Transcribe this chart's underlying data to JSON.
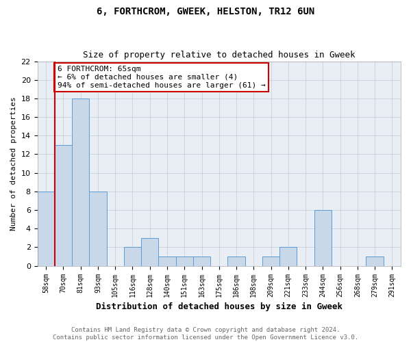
{
  "title": "6, FORTHCROM, GWEEK, HELSTON, TR12 6UN",
  "subtitle": "Size of property relative to detached houses in Gweek",
  "xlabel": "Distribution of detached houses by size in Gweek",
  "ylabel": "Number of detached properties",
  "categories": [
    "58sqm",
    "70sqm",
    "81sqm",
    "93sqm",
    "105sqm",
    "116sqm",
    "128sqm",
    "140sqm",
    "151sqm",
    "163sqm",
    "175sqm",
    "186sqm",
    "198sqm",
    "209sqm",
    "221sqm",
    "233sqm",
    "244sqm",
    "256sqm",
    "268sqm",
    "279sqm",
    "291sqm"
  ],
  "values": [
    8,
    13,
    18,
    8,
    0,
    2,
    3,
    1,
    1,
    1,
    0,
    1,
    0,
    1,
    2,
    0,
    6,
    0,
    0,
    1,
    0
  ],
  "bar_color": "#c8d8e8",
  "bar_edge_color": "#5b9bd5",
  "annotation_line1": "6 FORTHCROM: 65sqm",
  "annotation_line2": "← 6% of detached houses are smaller (4)",
  "annotation_line3": "94% of semi-detached houses are larger (61) →",
  "annotation_box_color": "#ffffff",
  "annotation_box_edge": "#cc0000",
  "ylim": [
    0,
    22
  ],
  "yticks": [
    0,
    2,
    4,
    6,
    8,
    10,
    12,
    14,
    16,
    18,
    20,
    22
  ],
  "background_color": "#ffffff",
  "plot_bg_color": "#e8eef4",
  "grid_color": "#c0ccd8",
  "footer_line1": "Contains HM Land Registry data © Crown copyright and database right 2024.",
  "footer_line2": "Contains public sector information licensed under the Open Government Licence v3.0.",
  "title_fontsize": 10,
  "subtitle_fontsize": 9,
  "xlabel_fontsize": 9,
  "ylabel_fontsize": 8,
  "tick_fontsize": 7,
  "annot_fontsize": 8,
  "footer_fontsize": 6.5
}
